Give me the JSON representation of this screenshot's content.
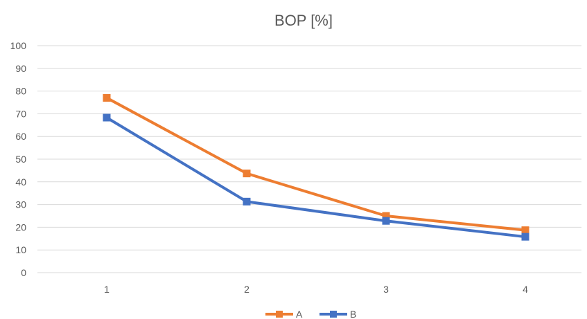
{
  "chart_data": {
    "type": "line",
    "title": "BOP [%]",
    "categories": [
      "1",
      "2",
      "3",
      "4"
    ],
    "x": [
      1,
      2,
      3,
      4
    ],
    "ylim": [
      0,
      100
    ],
    "ytick_step": 10,
    "yticks": [
      "0",
      "10",
      "20",
      "30",
      "40",
      "50",
      "60",
      "70",
      "80",
      "90",
      "100"
    ],
    "grid": true,
    "legend": "bottom-center",
    "marker": "square",
    "series": [
      {
        "name": "A",
        "color": "#ED7D31",
        "values": [
          77,
          43.7,
          25,
          18.7
        ]
      },
      {
        "name": "B",
        "color": "#4472C4",
        "values": [
          68.3,
          31.3,
          22.8,
          15.8
        ]
      }
    ]
  }
}
